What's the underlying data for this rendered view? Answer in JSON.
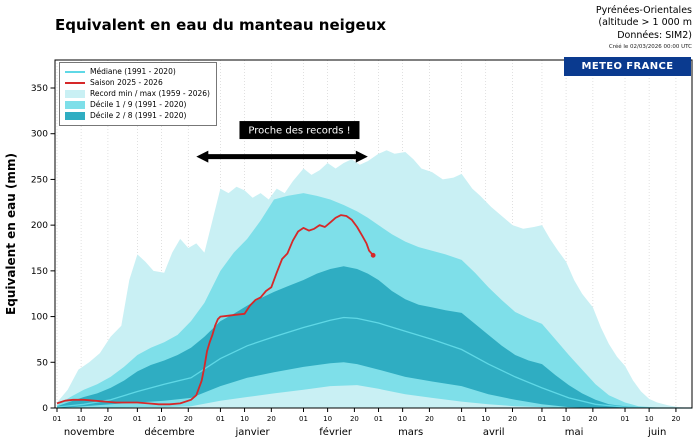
{
  "header": {
    "title": "Equivalent en eau du manteau neigeux",
    "region": "Pyrénées-Orientales",
    "altitude": "(altitude > 1 000 m",
    "source": "Données: SIM2)",
    "created": "Créé le 02/03/2026 00:00 UTC",
    "badge": "METEO FRANCE"
  },
  "chart_data": {
    "type": "area",
    "title": "Equivalent en eau du manteau neigeux",
    "xlabel": "",
    "ylabel": "Equivalent en eau (mm)",
    "ylim": [
      0,
      380
    ],
    "yticks": [
      0,
      50,
      100,
      150,
      200,
      250,
      300,
      350
    ],
    "x_total_days": 237,
    "months": [
      {
        "label": "novembre",
        "start_day": 0
      },
      {
        "label": "décembre",
        "start_day": 30
      },
      {
        "label": "janvier",
        "start_day": 61
      },
      {
        "label": "février",
        "start_day": 92
      },
      {
        "label": "mars",
        "start_day": 120
      },
      {
        "label": "avril",
        "start_day": 151
      },
      {
        "label": "mai",
        "start_day": 181
      },
      {
        "label": "juin",
        "start_day": 212
      }
    ],
    "tick_offsets": [
      0,
      9,
      19
    ],
    "tick_labels": [
      "01",
      "10",
      "20"
    ],
    "legend": [
      {
        "type": "line",
        "color": "#5fd8e6",
        "label": "Médiane (1991 - 2020)"
      },
      {
        "type": "line",
        "color": "#d62829",
        "label": "Saison 2025 - 2026"
      },
      {
        "type": "patch",
        "color": "#c9f0f4",
        "label": "Record min / max (1959 - 2026)"
      },
      {
        "type": "patch",
        "color": "#7edfe9",
        "label": "Décile 1 / 9 (1991 - 2020)"
      },
      {
        "type": "patch",
        "color": "#2fadc2",
        "label": "Décile 2 / 8 (1991 - 2020)"
      }
    ],
    "colors": {
      "record": "#c9f0f4",
      "decile_1_9": "#7edfe9",
      "decile_2_8": "#2fadc2",
      "median": "#5fd8e6",
      "season": "#d62829",
      "badge": "#0a3a8f",
      "annotation_bg": "#000000",
      "annotation_text": "#ffffff",
      "arrow": "#000000",
      "grid": "#d4d4d4",
      "frame": "#000000"
    },
    "annotation": {
      "label": "Proche des records !",
      "box_day": 90.5,
      "box_mm": 304,
      "arrow_day_start": 52,
      "arrow_day_end": 116,
      "arrow_mm": 275
    },
    "series": {
      "record_max": [
        [
          0,
          6
        ],
        [
          4,
          20
        ],
        [
          8,
          42
        ],
        [
          12,
          50
        ],
        [
          16,
          60
        ],
        [
          20,
          78
        ],
        [
          24,
          90
        ],
        [
          27,
          140
        ],
        [
          30,
          168
        ],
        [
          33,
          160
        ],
        [
          36,
          150
        ],
        [
          40,
          148
        ],
        [
          43,
          170
        ],
        [
          46,
          185
        ],
        [
          49,
          175
        ],
        [
          52,
          180
        ],
        [
          55,
          170
        ],
        [
          58,
          205
        ],
        [
          61,
          240
        ],
        [
          64,
          235
        ],
        [
          67,
          242
        ],
        [
          70,
          238
        ],
        [
          73,
          230
        ],
        [
          76,
          235
        ],
        [
          79,
          228
        ],
        [
          82,
          240
        ],
        [
          85,
          235
        ],
        [
          88,
          248
        ],
        [
          92,
          262
        ],
        [
          95,
          255
        ],
        [
          98,
          260
        ],
        [
          101,
          268
        ],
        [
          104,
          262
        ],
        [
          107,
          268
        ],
        [
          110,
          272
        ],
        [
          113,
          266
        ],
        [
          116,
          270
        ],
        [
          120,
          278
        ],
        [
          123,
          282
        ],
        [
          126,
          278
        ],
        [
          130,
          280
        ],
        [
          133,
          272
        ],
        [
          136,
          262
        ],
        [
          140,
          258
        ],
        [
          144,
          250
        ],
        [
          148,
          252
        ],
        [
          151,
          256
        ],
        [
          155,
          240
        ],
        [
          158,
          232
        ],
        [
          162,
          220
        ],
        [
          166,
          210
        ],
        [
          170,
          200
        ],
        [
          174,
          196
        ],
        [
          178,
          198
        ],
        [
          181,
          200
        ],
        [
          184,
          185
        ],
        [
          187,
          172
        ],
        [
          190,
          160
        ],
        [
          193,
          140
        ],
        [
          196,
          125
        ],
        [
          200,
          110
        ],
        [
          203,
          88
        ],
        [
          206,
          70
        ],
        [
          209,
          56
        ],
        [
          212,
          46
        ],
        [
          215,
          30
        ],
        [
          218,
          18
        ],
        [
          221,
          10
        ],
        [
          224,
          6
        ],
        [
          228,
          3
        ],
        [
          232,
          1
        ],
        [
          237,
          0
        ]
      ],
      "record_min_mm": 0,
      "decile9": [
        [
          0,
          3
        ],
        [
          5,
          12
        ],
        [
          10,
          20
        ],
        [
          15,
          26
        ],
        [
          20,
          34
        ],
        [
          25,
          45
        ],
        [
          30,
          58
        ],
        [
          35,
          66
        ],
        [
          40,
          72
        ],
        [
          45,
          80
        ],
        [
          50,
          95
        ],
        [
          55,
          115
        ],
        [
          61,
          150
        ],
        [
          66,
          170
        ],
        [
          71,
          185
        ],
        [
          76,
          205
        ],
        [
          81,
          228
        ],
        [
          86,
          232
        ],
        [
          92,
          235
        ],
        [
          97,
          232
        ],
        [
          102,
          228
        ],
        [
          107,
          222
        ],
        [
          112,
          215
        ],
        [
          116,
          208
        ],
        [
          120,
          200
        ],
        [
          125,
          190
        ],
        [
          130,
          182
        ],
        [
          135,
          176
        ],
        [
          140,
          172
        ],
        [
          145,
          168
        ],
        [
          151,
          162
        ],
        [
          156,
          148
        ],
        [
          161,
          132
        ],
        [
          166,
          118
        ],
        [
          171,
          105
        ],
        [
          176,
          98
        ],
        [
          181,
          92
        ],
        [
          186,
          75
        ],
        [
          191,
          58
        ],
        [
          196,
          42
        ],
        [
          201,
          26
        ],
        [
          206,
          14
        ],
        [
          212,
          6
        ],
        [
          217,
          2
        ],
        [
          222,
          1
        ],
        [
          227,
          0
        ],
        [
          237,
          0
        ]
      ],
      "decile1": [
        [
          0,
          0
        ],
        [
          20,
          0
        ],
        [
          30,
          1
        ],
        [
          40,
          1
        ],
        [
          50,
          2
        ],
        [
          61,
          8
        ],
        [
          71,
          12
        ],
        [
          81,
          16
        ],
        [
          92,
          20
        ],
        [
          102,
          24
        ],
        [
          112,
          25
        ],
        [
          120,
          21
        ],
        [
          130,
          15
        ],
        [
          140,
          11
        ],
        [
          151,
          7
        ],
        [
          161,
          4
        ],
        [
          171,
          2
        ],
        [
          181,
          1
        ],
        [
          191,
          0
        ],
        [
          237,
          0
        ]
      ],
      "decile8": [
        [
          0,
          2
        ],
        [
          5,
          7
        ],
        [
          10,
          12
        ],
        [
          15,
          16
        ],
        [
          20,
          22
        ],
        [
          25,
          30
        ],
        [
          30,
          40
        ],
        [
          35,
          47
        ],
        [
          40,
          52
        ],
        [
          45,
          58
        ],
        [
          50,
          66
        ],
        [
          55,
          78
        ],
        [
          61,
          95
        ],
        [
          66,
          103
        ],
        [
          71,
          112
        ],
        [
          76,
          120
        ],
        [
          81,
          127
        ],
        [
          86,
          133
        ],
        [
          92,
          140
        ],
        [
          97,
          147
        ],
        [
          102,
          152
        ],
        [
          107,
          155
        ],
        [
          112,
          152
        ],
        [
          116,
          147
        ],
        [
          120,
          140
        ],
        [
          125,
          128
        ],
        [
          130,
          119
        ],
        [
          135,
          113
        ],
        [
          140,
          110
        ],
        [
          145,
          107
        ],
        [
          151,
          104
        ],
        [
          156,
          92
        ],
        [
          161,
          80
        ],
        [
          166,
          68
        ],
        [
          171,
          58
        ],
        [
          176,
          52
        ],
        [
          181,
          48
        ],
        [
          186,
          36
        ],
        [
          191,
          25
        ],
        [
          196,
          16
        ],
        [
          201,
          9
        ],
        [
          206,
          4
        ],
        [
          212,
          2
        ],
        [
          217,
          1
        ],
        [
          222,
          0
        ],
        [
          237,
          0
        ]
      ],
      "decile2": [
        [
          0,
          0
        ],
        [
          10,
          2
        ],
        [
          20,
          4
        ],
        [
          30,
          6
        ],
        [
          40,
          8
        ],
        [
          50,
          11
        ],
        [
          61,
          24
        ],
        [
          71,
          33
        ],
        [
          81,
          39
        ],
        [
          92,
          45
        ],
        [
          102,
          49
        ],
        [
          107,
          50
        ],
        [
          112,
          48
        ],
        [
          120,
          42
        ],
        [
          130,
          34
        ],
        [
          140,
          29
        ],
        [
          151,
          24
        ],
        [
          161,
          15
        ],
        [
          171,
          9
        ],
        [
          181,
          4
        ],
        [
          191,
          1
        ],
        [
          201,
          0
        ],
        [
          237,
          0
        ]
      ],
      "mediane": [
        [
          0,
          1
        ],
        [
          10,
          4
        ],
        [
          20,
          9
        ],
        [
          30,
          18
        ],
        [
          40,
          26
        ],
        [
          50,
          33
        ],
        [
          61,
          54
        ],
        [
          71,
          68
        ],
        [
          81,
          78
        ],
        [
          92,
          88
        ],
        [
          102,
          96
        ],
        [
          107,
          99
        ],
        [
          112,
          98
        ],
        [
          120,
          93
        ],
        [
          130,
          84
        ],
        [
          140,
          75
        ],
        [
          151,
          64
        ],
        [
          161,
          48
        ],
        [
          171,
          34
        ],
        [
          181,
          22
        ],
        [
          191,
          11
        ],
        [
          201,
          4
        ],
        [
          212,
          1
        ],
        [
          222,
          0
        ],
        [
          237,
          0
        ]
      ],
      "saison": [
        [
          0,
          5
        ],
        [
          3,
          8
        ],
        [
          6,
          9
        ],
        [
          10,
          9
        ],
        [
          14,
          8
        ],
        [
          18,
          7
        ],
        [
          22,
          6
        ],
        [
          26,
          6
        ],
        [
          30,
          6
        ],
        [
          34,
          5
        ],
        [
          38,
          4
        ],
        [
          42,
          4
        ],
        [
          46,
          5
        ],
        [
          50,
          9
        ],
        [
          52,
          14
        ],
        [
          54,
          30
        ],
        [
          55,
          45
        ],
        [
          56,
          62
        ],
        [
          57,
          72
        ],
        [
          58,
          80
        ],
        [
          59,
          90
        ],
        [
          60,
          97
        ],
        [
          61,
          100
        ],
        [
          64,
          101
        ],
        [
          67,
          102
        ],
        [
          70,
          103
        ],
        [
          72,
          112
        ],
        [
          74,
          118
        ],
        [
          76,
          121
        ],
        [
          78,
          128
        ],
        [
          80,
          132
        ],
        [
          82,
          148
        ],
        [
          84,
          163
        ],
        [
          86,
          169
        ],
        [
          88,
          183
        ],
        [
          90,
          193
        ],
        [
          92,
          197
        ],
        [
          94,
          194
        ],
        [
          96,
          196
        ],
        [
          98,
          200
        ],
        [
          100,
          198
        ],
        [
          102,
          203
        ],
        [
          104,
          208
        ],
        [
          106,
          211
        ],
        [
          108,
          210
        ],
        [
          110,
          206
        ],
        [
          112,
          198
        ],
        [
          114,
          188
        ],
        [
          115.5,
          180
        ],
        [
          116.5,
          172
        ],
        [
          118,
          167
        ]
      ]
    }
  }
}
